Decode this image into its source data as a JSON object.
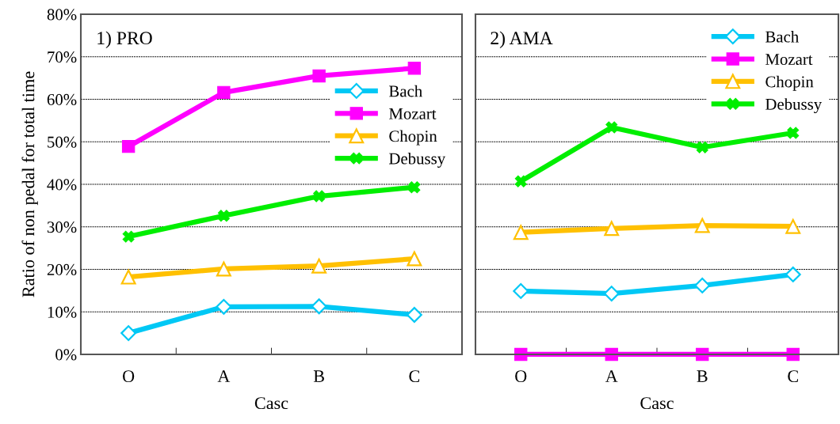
{
  "chart_data": [
    {
      "type": "line",
      "title": "1) PRO",
      "xlabel": "Casc",
      "ylabel": "Ratio of non pedal for total time",
      "categories": [
        "O",
        "A",
        "B",
        "C"
      ],
      "series": [
        {
          "name": "Bach",
          "color": "#00c8f5",
          "marker": "diamond",
          "values": [
            5.0,
            11.2,
            11.3,
            9.3
          ]
        },
        {
          "name": "Mozart",
          "color": "#ff00ff",
          "marker": "square",
          "values": [
            48.9,
            61.6,
            65.5,
            67.3
          ]
        },
        {
          "name": "Chopin",
          "color": "#ffc000",
          "marker": "triangle",
          "values": [
            18.2,
            20.1,
            20.8,
            22.5
          ]
        },
        {
          "name": "Debussy",
          "color": "#00ee00",
          "marker": "cross",
          "values": [
            27.7,
            32.6,
            37.2,
            39.3
          ]
        }
      ],
      "ylim": [
        0,
        80
      ],
      "yticks": [
        {
          "value": 0,
          "label": "0%"
        },
        {
          "value": 10,
          "label": "10%"
        },
        {
          "value": 20,
          "label": "20%"
        },
        {
          "value": 30,
          "label": "30%"
        },
        {
          "value": 40,
          "label": "40%"
        },
        {
          "value": 50,
          "label": "50%"
        },
        {
          "value": 60,
          "label": "60%"
        },
        {
          "value": 70,
          "label": "70%"
        },
        {
          "value": 80,
          "label": "80%"
        }
      ],
      "grid": "y",
      "legend": "right"
    },
    {
      "type": "line",
      "title": "2) AMA",
      "xlabel": "Casc",
      "categories": [
        "O",
        "A",
        "B",
        "C"
      ],
      "series": [
        {
          "name": "Bach",
          "color": "#00c8f5",
          "marker": "diamond",
          "values": [
            14.9,
            14.3,
            16.2,
            18.8
          ]
        },
        {
          "name": "Mozart",
          "color": "#ff00ff",
          "marker": "square",
          "values": [
            0,
            0,
            0,
            0
          ]
        },
        {
          "name": "Chopin",
          "color": "#ffc000",
          "marker": "triangle",
          "values": [
            28.7,
            29.6,
            30.3,
            30.1
          ]
        },
        {
          "name": "Debussy",
          "color": "#00ee00",
          "marker": "cross",
          "values": [
            40.7,
            53.4,
            48.7,
            52.1
          ]
        }
      ],
      "ylim": [
        0,
        80
      ],
      "yticks": [
        0,
        10,
        20,
        30,
        40,
        50,
        60,
        70,
        80
      ],
      "tick_labels": "x",
      "grid": "y",
      "legend": "top right"
    }
  ]
}
